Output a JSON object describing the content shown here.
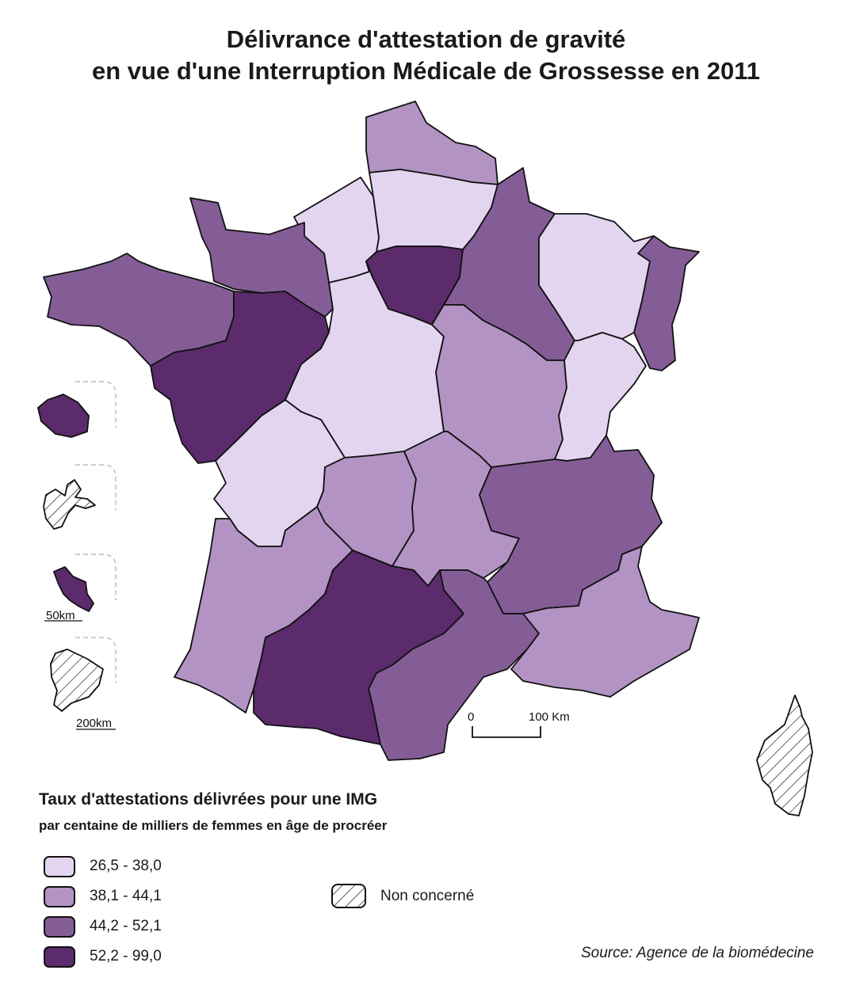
{
  "title": {
    "line1": "Délivrance d'attestation de gravité",
    "line2": "en vue d'une Interruption Médicale de Grossesse en 2011"
  },
  "colors": {
    "class1": "#e3d5f0",
    "class2": "#b293c4",
    "class3": "#845d97",
    "class4": "#5b2b6c",
    "outline": "#111111",
    "hatch": "#111111"
  },
  "map": {
    "regions": [
      {
        "name": "Nord-Pas-de-Calais",
        "class": 2
      },
      {
        "name": "Picardie",
        "class": 1
      },
      {
        "name": "Haute-Normandie",
        "class": 1
      },
      {
        "name": "Basse-Normandie",
        "class": 3
      },
      {
        "name": "Bretagne",
        "class": 3
      },
      {
        "name": "Pays de la Loire",
        "class": 4
      },
      {
        "name": "Île-de-France",
        "class": 4
      },
      {
        "name": "Champagne-Ardenne",
        "class": 3
      },
      {
        "name": "Lorraine",
        "class": 1
      },
      {
        "name": "Alsace",
        "class": 3
      },
      {
        "name": "Centre",
        "class": 1
      },
      {
        "name": "Bourgogne",
        "class": 2
      },
      {
        "name": "Franche-Comté",
        "class": 1
      },
      {
        "name": "Poitou-Charentes",
        "class": 1
      },
      {
        "name": "Limousin",
        "class": 2
      },
      {
        "name": "Auvergne",
        "class": 2
      },
      {
        "name": "Rhône-Alpes",
        "class": 3
      },
      {
        "name": "Aquitaine",
        "class": 2
      },
      {
        "name": "Midi-Pyrénées",
        "class": 4
      },
      {
        "name": "Languedoc-Roussillon",
        "class": 3
      },
      {
        "name": "Provence-Alpes-Côte d'Azur",
        "class": 2
      },
      {
        "name": "Corse",
        "class": "non-concerne"
      }
    ],
    "insets": [
      {
        "name": "La Réunion",
        "class": 4,
        "scale_label": ""
      },
      {
        "name": "Guadeloupe",
        "class": "non-concerne",
        "scale_label": ""
      },
      {
        "name": "Martinique",
        "class": 4,
        "scale_label": "50km"
      },
      {
        "name": "Guyane",
        "class": "non-concerne",
        "scale_label": "200km"
      }
    ],
    "scalebar": {
      "start_label": "0",
      "end_label": "100 Km"
    }
  },
  "legend": {
    "title": "Taux d'attestations délivrées pour une IMG",
    "subtitle": "par centaine de milliers de femmes en âge de procréer",
    "classes": [
      {
        "label": "26,5 - 38,0",
        "color": "#e3d5f0"
      },
      {
        "label": "38,1 - 44,1",
        "color": "#b293c4"
      },
      {
        "label": "44,2 - 52,1",
        "color": "#845d97"
      },
      {
        "label": "52,2 - 99,0",
        "color": "#5b2b6c"
      }
    ],
    "non_concerne": "Non concerné"
  },
  "source": "Source: Agence de la biomédecine"
}
